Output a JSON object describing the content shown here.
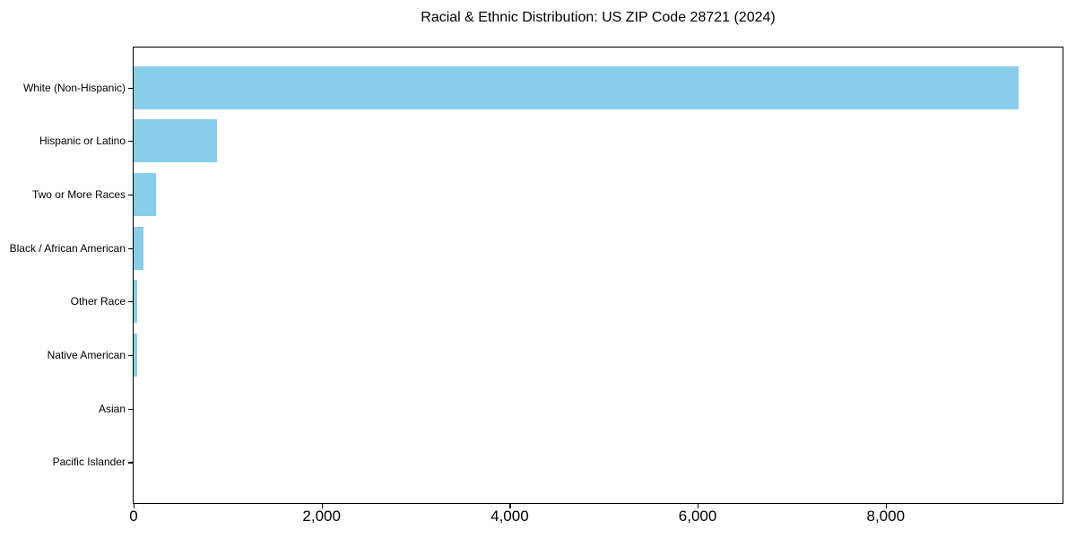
{
  "chart_data": {
    "type": "bar",
    "orientation": "horizontal",
    "title": "Racial & Ethnic Distribution: US ZIP Code 28721 (2024)",
    "categories": [
      "White (Non-Hispanic)",
      "Hispanic or Latino",
      "Two or More Races",
      "Black / African American",
      "Other Race",
      "Native American",
      "Asian",
      "Pacific Islander"
    ],
    "values": [
      9410,
      890,
      235,
      105,
      35,
      40,
      0,
      0
    ],
    "xlabel": "",
    "ylabel": "",
    "xlim": [
      0,
      9881
    ],
    "x_ticks": [
      0,
      2000,
      4000,
      6000,
      8000
    ],
    "x_tick_labels": [
      "0",
      "2,000",
      "4,000",
      "6,000",
      "8,000"
    ],
    "bar_color": "#87CEEB",
    "axis_color": "#000000",
    "grid": false,
    "legend": false,
    "value_labels": false
  }
}
